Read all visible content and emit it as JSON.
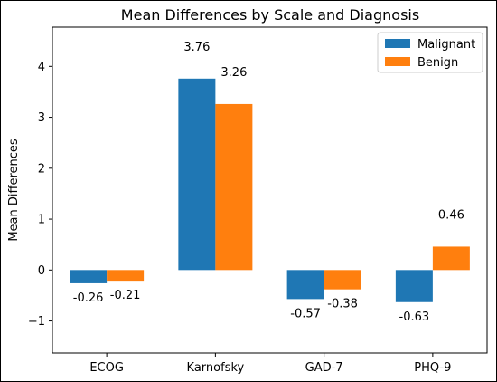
{
  "chart_data": {
    "type": "bar",
    "title": "Mean Differences by Scale and Diagnosis",
    "xlabel": "",
    "ylabel": "Mean Differences",
    "categories": [
      "ECOG",
      "Karnofsky",
      "GAD-7",
      "PHQ-9"
    ],
    "series": [
      {
        "name": "Malignant",
        "color": "#1f77b4",
        "values": [
          -0.26,
          3.76,
          -0.57,
          -0.63
        ]
      },
      {
        "name": "Benign",
        "color": "#ff7f0e",
        "values": [
          -0.21,
          3.26,
          -0.38,
          0.46
        ]
      }
    ],
    "data_labels": [
      [
        "-0.26",
        "3.76",
        "-0.57",
        "-0.63"
      ],
      [
        "-0.21",
        "3.26",
        "-0.38",
        "0.46"
      ]
    ],
    "ylim": [
      -1.63,
      4.77
    ],
    "yticks": [
      -1,
      0,
      1,
      2,
      3,
      4
    ],
    "ytick_labels": [
      "−1",
      "0",
      "1",
      "2",
      "3",
      "4"
    ],
    "grid": false,
    "legend_position": "top-right"
  }
}
